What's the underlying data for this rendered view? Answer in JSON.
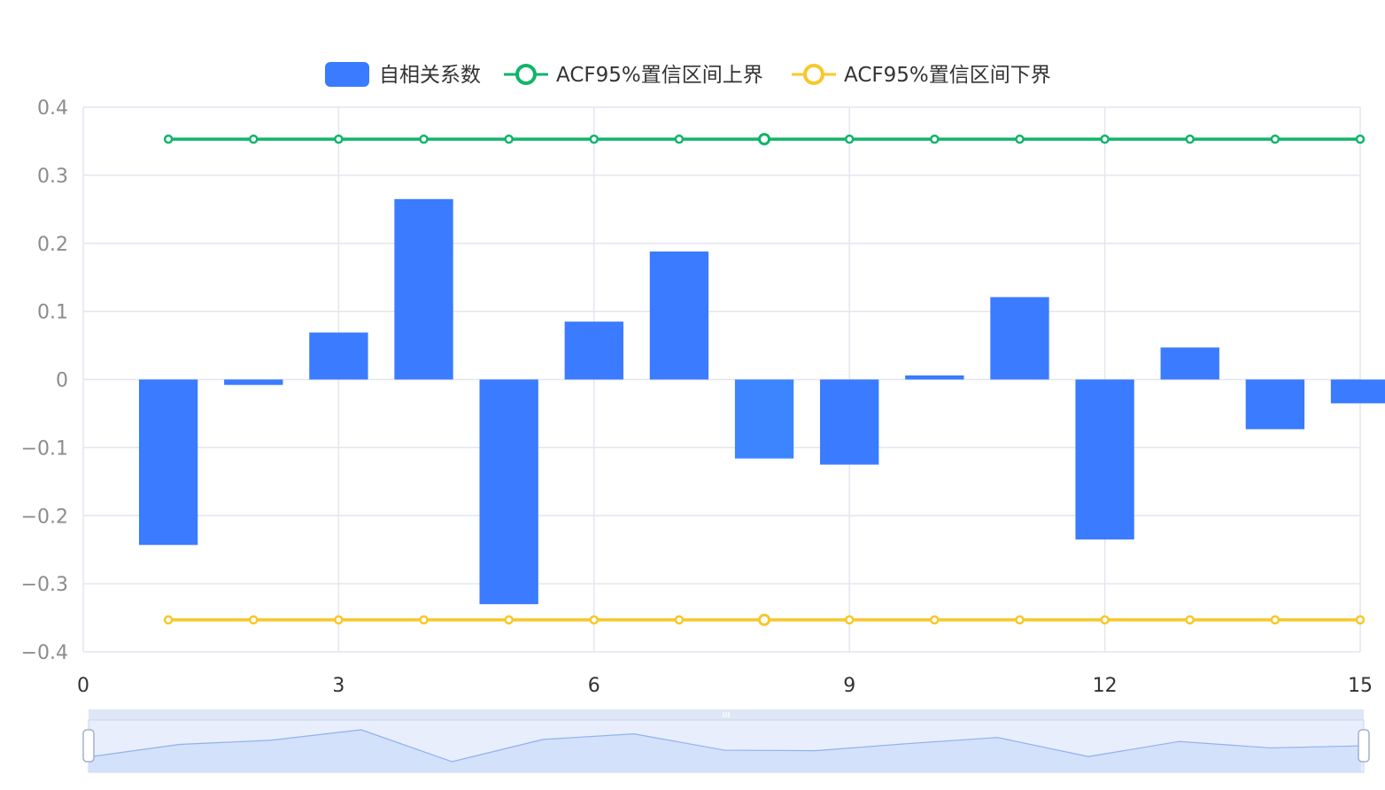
{
  "colors": {
    "bar": "#3a7bff",
    "bar_highlight": "#3d85ff",
    "upper": "#0fb56a",
    "lower": "#f7c82a",
    "grid": "#e3e6ef",
    "zoom_fill": "#d3e1fb",
    "zoom_line": "#8fb1ee",
    "zoom_bg": "#e8eefc",
    "zoom_bar": "#dfe6f5",
    "handle_border": "#a2b0cb"
  },
  "legend": {
    "items": [
      {
        "name": "自相关系数",
        "icon": "rounded-rect-icon"
      },
      {
        "name": "ACF95%置信区间上界",
        "icon": "line-circle-icon"
      },
      {
        "name": "ACF95%置信区间下界",
        "icon": "line-circle-icon"
      }
    ],
    "placement": "top-center"
  },
  "chart_data": {
    "type": "bar",
    "x": [
      1,
      2,
      3,
      4,
      5,
      6,
      7,
      8,
      9,
      10,
      11,
      12,
      13,
      14,
      15
    ],
    "xlim": [
      0,
      15
    ],
    "x_ticks": [
      "0",
      "3",
      "6",
      "9",
      "12",
      "15"
    ],
    "ylim": [
      -0.4,
      0.4
    ],
    "y_ticks": [
      "0.4",
      "0.3",
      "0.2",
      "0.1",
      "0",
      "−0.1",
      "−0.2",
      "−0.3",
      "−0.4"
    ],
    "grid": true,
    "highlighted_index": 7,
    "series": [
      {
        "name": "自相关系数",
        "type": "bar",
        "values": [
          -0.243,
          -0.008,
          0.069,
          0.265,
          -0.33,
          0.085,
          0.188,
          -0.116,
          -0.125,
          0.006,
          0.121,
          -0.235,
          0.047,
          -0.073,
          -0.035
        ]
      },
      {
        "name": "ACF95%置信区间上界",
        "type": "line",
        "values": [
          0.353,
          0.353,
          0.353,
          0.353,
          0.353,
          0.353,
          0.353,
          0.353,
          0.353,
          0.353,
          0.353,
          0.353,
          0.353,
          0.353,
          0.353
        ]
      },
      {
        "name": "ACF95%置信区间下界",
        "type": "line",
        "values": [
          -0.353,
          -0.353,
          -0.353,
          -0.353,
          -0.353,
          -0.353,
          -0.353,
          -0.353,
          -0.353,
          -0.353,
          -0.353,
          -0.353,
          -0.353,
          -0.353,
          -0.353
        ]
      }
    ],
    "data_zoom": {
      "start": 0,
      "end": 100
    }
  }
}
